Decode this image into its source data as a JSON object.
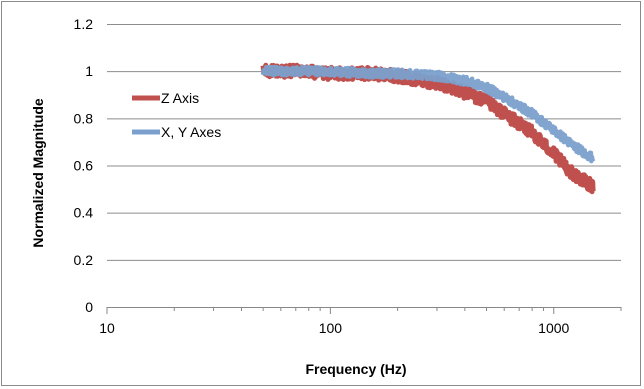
{
  "chart_data": {
    "type": "line",
    "title": "",
    "xlabel": "Frequency (Hz)",
    "ylabel": "Normalized Magnitude",
    "x_scale": "log",
    "xlim": [
      10,
      2000
    ],
    "ylim": [
      0,
      1.2
    ],
    "x_ticks": [
      10,
      100,
      1000
    ],
    "x_tick_labels": [
      "10",
      "100",
      "1000"
    ],
    "y_ticks": [
      0,
      0.2,
      0.4,
      0.6,
      0.8,
      1,
      1.2
    ],
    "y_tick_labels": [
      "0",
      "0.2",
      "0.4",
      "0.6",
      "0.8",
      "1",
      "1.2"
    ],
    "grid": "horizontal major",
    "legend": "left",
    "series": [
      {
        "name": "Z Axis",
        "color": "#c0504d",
        "x": [
          50,
          70,
          100,
          150,
          200,
          300,
          400,
          500,
          600,
          800,
          1000,
          1200,
          1500
        ],
        "y": [
          1.0,
          1.0,
          0.99,
          0.99,
          0.98,
          0.95,
          0.91,
          0.87,
          0.82,
          0.74,
          0.65,
          0.57,
          0.51
        ]
      },
      {
        "name": "X, Y Axes",
        "color": "#7ba0cd",
        "x": [
          50,
          70,
          100,
          150,
          200,
          300,
          400,
          500,
          600,
          800,
          1000,
          1200,
          1500
        ],
        "y": [
          1.0,
          1.0,
          1.0,
          0.99,
          0.99,
          0.98,
          0.96,
          0.93,
          0.89,
          0.82,
          0.75,
          0.69,
          0.63
        ]
      }
    ]
  }
}
